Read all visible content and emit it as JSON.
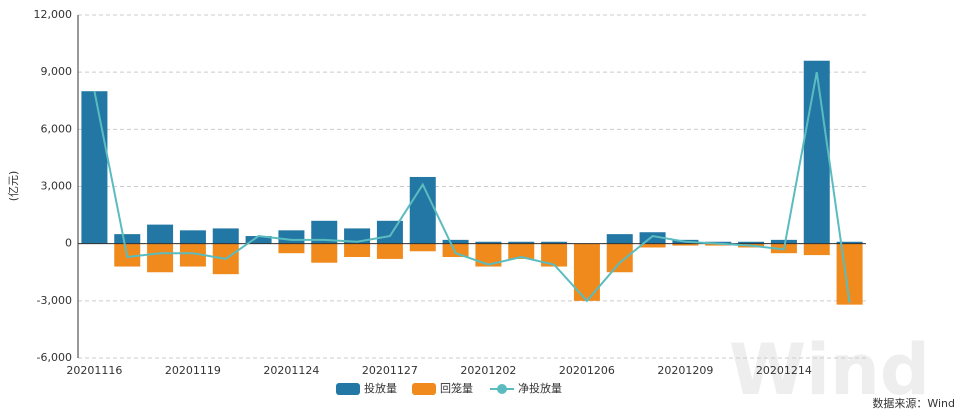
{
  "chart_data": {
    "type": "bar-line",
    "y_label": "(亿元)",
    "source": "数据来源：Wind",
    "watermark": "Wind",
    "categories": [
      "20201116",
      null,
      null,
      "20201119",
      null,
      null,
      "20201124",
      null,
      null,
      "20201127",
      null,
      null,
      "20201202",
      null,
      null,
      "20201206",
      null,
      null,
      "20201209",
      null,
      null,
      "20201214",
      null,
      null
    ],
    "series": [
      {
        "name": "投放量",
        "kind": "bar",
        "color": "#2277a4",
        "values": [
          8000,
          500,
          1000,
          700,
          800,
          400,
          700,
          1200,
          800,
          1200,
          3500,
          200,
          100,
          100,
          100,
          0,
          500,
          600,
          200,
          100,
          100,
          200,
          9600,
          100
        ]
      },
      {
        "name": "回笼量",
        "kind": "bar",
        "color": "#f08a1c",
        "values": [
          0,
          -1200,
          -1500,
          -1200,
          -1600,
          0,
          -500,
          -1000,
          -700,
          -800,
          -400,
          -700,
          -1200,
          -800,
          -1200,
          -3000,
          -1500,
          -200,
          -100,
          -100,
          -200,
          -500,
          -600,
          -3200
        ]
      },
      {
        "name": "净投放量",
        "kind": "line",
        "color": "#5bbcbf",
        "values": [
          8000,
          -700,
          -500,
          -500,
          -800,
          400,
          200,
          200,
          100,
          400,
          3100,
          -500,
          -1100,
          -700,
          -1100,
          -3000,
          -1000,
          400,
          100,
          0,
          -100,
          -300,
          9000,
          -3100
        ]
      }
    ],
    "ylim": [
      -6000,
      12000
    ],
    "yticks": [
      {
        "value": -6000,
        "label": "-6,000"
      },
      {
        "value": -3000,
        "label": "-3,000"
      },
      0,
      {
        "value": 3000,
        "label": "3,000"
      },
      {
        "value": 6000,
        "label": "6,000"
      },
      {
        "value": 9000,
        "label": "9,000"
      },
      {
        "value": 12000,
        "label": "12,000"
      }
    ],
    "grid": true
  }
}
